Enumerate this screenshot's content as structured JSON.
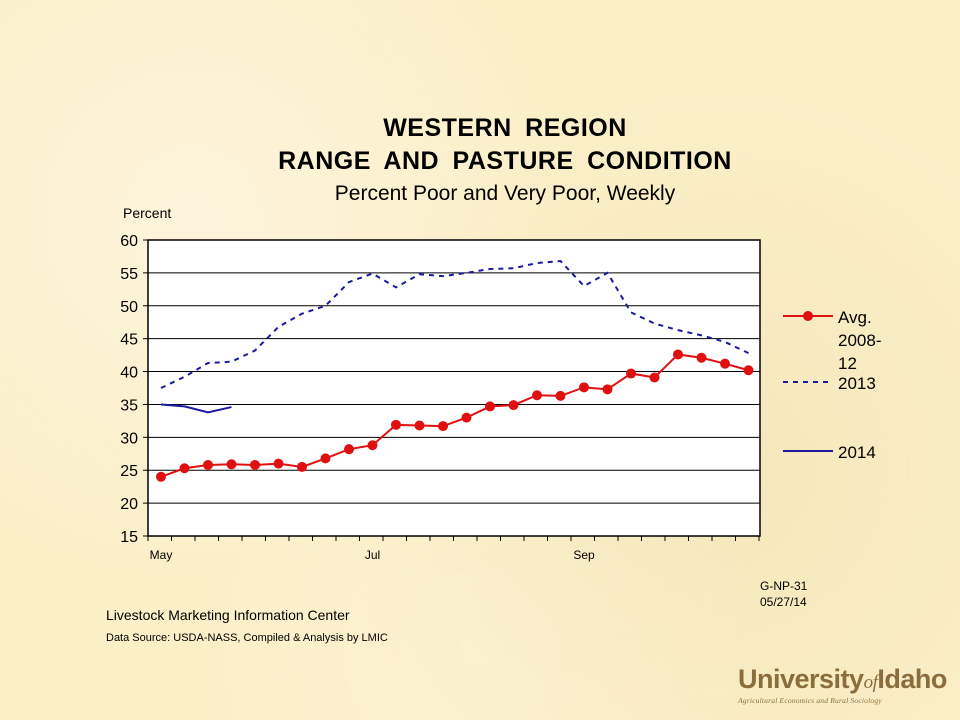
{
  "title_line1": "WESTERN  REGION",
  "title_line2": "RANGE  AND  PASTURE  CONDITION",
  "subtitle": "Percent Poor and Very Poor, Weekly",
  "footer": {
    "code": "G-NP-31",
    "date": "05/27/14",
    "source1": "Livestock Marketing Information  Center",
    "source2": "Data Source:  USDA-NASS, Compiled & Analysis by LMIC"
  },
  "logo": {
    "part1": "University",
    "of": "of",
    "part2": "Idaho",
    "tagline": "Agricultural Economics and Rural Sociology"
  },
  "colors": {
    "avg": "#e01010",
    "y2013": "#1a1aa0",
    "y2014": "#1a1aa0",
    "grid": "#000000"
  },
  "chart_data": {
    "type": "line",
    "ylabel": "Percent",
    "ylim": [
      15,
      60
    ],
    "yticks": [
      15,
      20,
      25,
      30,
      35,
      40,
      45,
      50,
      55,
      60
    ],
    "x_count": 27,
    "xtick_labels": [
      {
        "label": "May",
        "index": 0
      },
      {
        "label": "Jul",
        "index": 9
      },
      {
        "label": "Sep",
        "index": 18
      }
    ],
    "grid": true,
    "legend_position": "right",
    "series": [
      {
        "name": "Avg. 2008-12",
        "legend_lines": [
          "Avg.",
          "2008-",
          "12"
        ],
        "style": "solid-markers",
        "values": [
          24.0,
          25.3,
          25.8,
          25.9,
          25.8,
          26.0,
          25.5,
          26.8,
          28.2,
          28.8,
          31.9,
          31.8,
          31.7,
          33.0,
          34.7,
          34.9,
          36.4,
          36.3,
          37.6,
          37.3,
          39.7,
          39.1,
          42.6,
          42.1,
          41.2,
          40.2
        ]
      },
      {
        "name": "2013",
        "legend_lines": [
          "2013"
        ],
        "style": "dashed",
        "values": [
          37.5,
          39.2,
          41.3,
          41.5,
          43.2,
          46.8,
          48.8,
          50.0,
          53.6,
          54.9,
          52.8,
          54.8,
          54.5,
          55.0,
          55.6,
          55.7,
          56.5,
          56.8,
          53.0,
          55.0,
          49.0,
          47.3,
          46.3,
          45.5,
          44.5,
          42.8
        ]
      },
      {
        "name": "2014",
        "legend_lines": [
          "2014"
        ],
        "style": "solid",
        "values": [
          35.0,
          34.7,
          33.8,
          34.6
        ]
      }
    ]
  }
}
